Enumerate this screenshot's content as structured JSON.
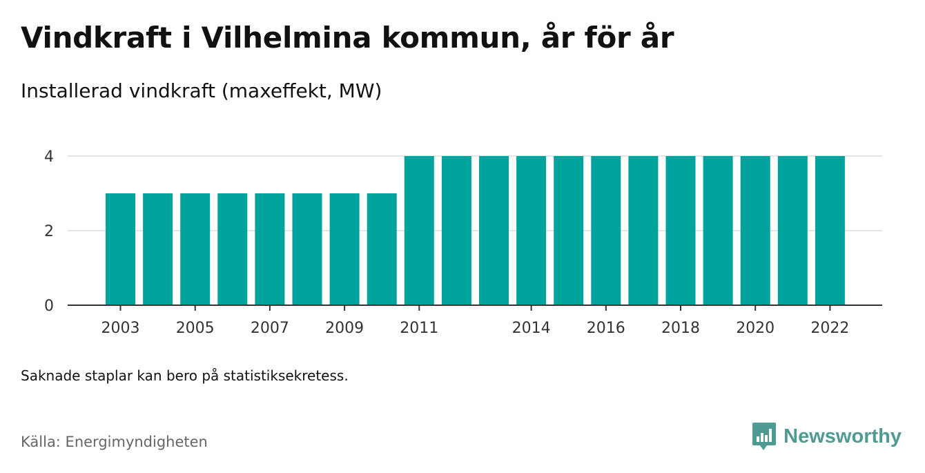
{
  "title": "Vindkraft i Vilhelmina kommun, år för år",
  "subtitle": "Installerad vindkraft (maxeffekt, MW)",
  "note": "Saknade staplar kan bero på statistiksekretess.",
  "source": "Källa: Energimyndigheten",
  "brand": {
    "name": "Newsworthy",
    "icon": "newsworthy-logo-icon",
    "color": "#4f9b94"
  },
  "colors": {
    "bar": "#00a49c",
    "grid": "#dddddd",
    "axis": "#333333"
  },
  "chart_data": {
    "type": "bar",
    "categories": [
      "2003",
      "2004",
      "2005",
      "2006",
      "2007",
      "2008",
      "2009",
      "2010",
      "2011",
      "2012",
      "2013",
      "2014",
      "2015",
      "2016",
      "2017",
      "2018",
      "2019",
      "2020",
      "2021",
      "2022"
    ],
    "x_tick_labels": [
      "2003",
      "",
      "2005",
      "",
      "2007",
      "",
      "2009",
      "",
      "2011",
      "",
      "",
      "2014",
      "",
      "2016",
      "",
      "2018",
      "",
      "2020",
      "",
      "2022"
    ],
    "values": [
      3,
      3,
      3,
      3,
      3,
      3,
      3,
      3,
      4,
      4,
      4,
      4,
      4,
      4,
      4,
      4,
      4,
      4,
      4,
      4
    ],
    "y_ticks": [
      0,
      2,
      4
    ],
    "ylim": [
      0,
      4
    ],
    "xlabel": "",
    "ylabel": "",
    "grid": true
  }
}
